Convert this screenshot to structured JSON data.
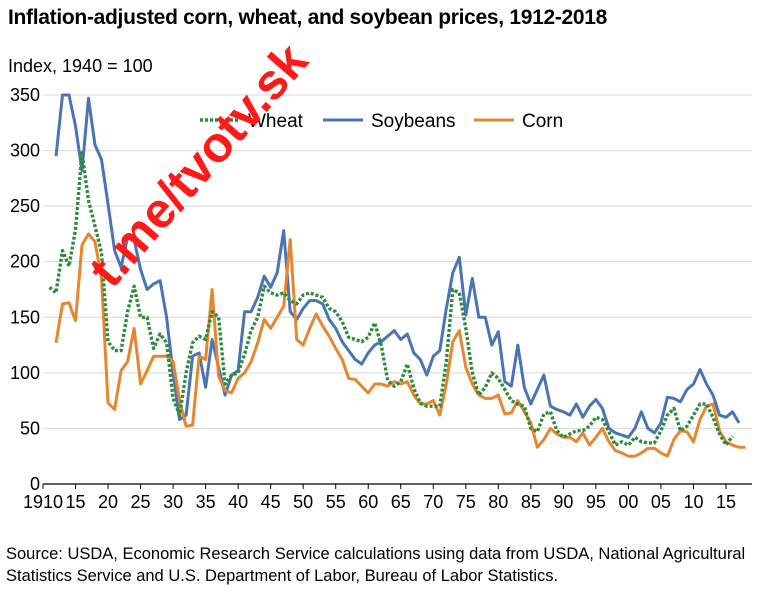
{
  "watermark": "t.me/tvotv.sk",
  "source_note": "Source: USDA, Economic Research Service calculations using data from USDA, National Agricultural Statistics Service and U.S. Department of Labor, Bureau of Labor Statistics.",
  "colors": {
    "wheat": "#2e8b3c",
    "soybeans": "#4a74b4",
    "corn": "#e8862f",
    "grid": "#d9d9d9",
    "watermark": "#ff1a1a"
  },
  "chart_data": {
    "type": "line",
    "title": "Inflation-adjusted corn, wheat, and soybean prices, 1912-2018",
    "ylabel": "Index, 1940 = 100",
    "xlabel": "",
    "xlim": [
      1910,
      2019
    ],
    "ylim": [
      0,
      350
    ],
    "grid": true,
    "legend_position": "top",
    "yticks": [
      0,
      50,
      100,
      150,
      200,
      250,
      300,
      350
    ],
    "xticks": [
      1910,
      1915,
      1920,
      1925,
      1930,
      1935,
      1940,
      1945,
      1950,
      1955,
      1960,
      1965,
      1970,
      1975,
      1980,
      1985,
      1990,
      1995,
      2000,
      2005,
      2010,
      2015
    ],
    "xtick_labels": [
      "1910",
      "15",
      "20",
      "25",
      "30",
      "35",
      "40",
      "45",
      "50",
      "55",
      "60",
      "65",
      "70",
      "75",
      "80",
      "85",
      "90",
      "95",
      "00",
      "05",
      "10",
      "15"
    ],
    "series": [
      {
        "name": "Wheat",
        "style": "dotted",
        "x": [
          1911,
          1912,
          1913,
          1914,
          1915,
          1916,
          1917,
          1918,
          1919,
          1920,
          1921,
          1922,
          1923,
          1924,
          1925,
          1926,
          1927,
          1928,
          1929,
          1930,
          1931,
          1932,
          1933,
          1934,
          1935,
          1936,
          1937,
          1938,
          1939,
          1940,
          1941,
          1942,
          1943,
          1944,
          1945,
          1946,
          1947,
          1948,
          1949,
          1950,
          1951,
          1952,
          1953,
          1954,
          1955,
          1956,
          1957,
          1958,
          1959,
          1960,
          1961,
          1962,
          1963,
          1964,
          1965,
          1966,
          1967,
          1968,
          1969,
          1970,
          1971,
          1972,
          1973,
          1974,
          1975,
          1976,
          1977,
          1978,
          1979,
          1980,
          1981,
          1982,
          1983,
          1984,
          1985,
          1986,
          1987,
          1988,
          1989,
          1990,
          1991,
          1992,
          1993,
          1994,
          1995,
          1996,
          1997,
          1998,
          1999,
          2000,
          2001,
          2002,
          2003,
          2004,
          2005,
          2006,
          2007,
          2008,
          2009,
          2010,
          2011,
          2012,
          2013,
          2014,
          2015,
          2016
        ],
        "values": [
          177,
          172,
          210,
          196,
          229,
          298,
          255,
          232,
          208,
          128,
          120,
          120,
          155,
          178,
          150,
          150,
          122,
          135,
          127,
          77,
          62,
          100,
          127,
          133,
          130,
          155,
          150,
          90,
          98,
          100,
          117,
          138,
          150,
          178,
          172,
          170,
          172,
          165,
          162,
          170,
          172,
          170,
          168,
          158,
          155,
          146,
          132,
          130,
          128,
          132,
          145,
          125,
          93,
          88,
          92,
          108,
          86,
          73,
          70,
          70,
          70,
          110,
          175,
          172,
          140,
          100,
          80,
          87,
          100,
          95,
          85,
          75,
          72,
          70,
          50,
          47,
          63,
          65,
          48,
          42,
          45,
          48,
          48,
          52,
          60,
          58,
          47,
          35,
          38,
          35,
          42,
          38,
          37,
          37,
          48,
          62,
          68,
          48,
          52,
          62,
          72,
          72,
          60,
          45,
          35,
          43
        ]
      },
      {
        "name": "Soybeans",
        "style": "solid",
        "x": [
          1912,
          1913,
          1914,
          1915,
          1916,
          1917,
          1918,
          1919,
          1920,
          1921,
          1922,
          1923,
          1924,
          1925,
          1926,
          1927,
          1928,
          1929,
          1930,
          1931,
          1932,
          1933,
          1934,
          1935,
          1936,
          1937,
          1938,
          1939,
          1940,
          1941,
          1942,
          1943,
          1944,
          1945,
          1946,
          1947,
          1948,
          1949,
          1950,
          1951,
          1952,
          1953,
          1954,
          1955,
          1956,
          1957,
          1958,
          1959,
          1960,
          1961,
          1962,
          1963,
          1964,
          1965,
          1966,
          1967,
          1968,
          1969,
          1970,
          1971,
          1972,
          1973,
          1974,
          1975,
          1976,
          1977,
          1978,
          1979,
          1980,
          1981,
          1982,
          1983,
          1984,
          1985,
          1986,
          1987,
          1988,
          1989,
          1990,
          1991,
          1992,
          1993,
          1994,
          1995,
          1996,
          1997,
          1998,
          1999,
          2000,
          2001,
          2002,
          2003,
          2004,
          2005,
          2006,
          2007,
          2008,
          2009,
          2010,
          2011,
          2012,
          2013,
          2014,
          2015,
          2016,
          2017
        ],
        "values": [
          295,
          350,
          350,
          322,
          282,
          347,
          305,
          292,
          252,
          210,
          195,
          222,
          220,
          193,
          175,
          180,
          183,
          150,
          100,
          58,
          62,
          115,
          118,
          87,
          130,
          105,
          80,
          98,
          102,
          155,
          155,
          168,
          187,
          177,
          190,
          228,
          155,
          148,
          158,
          165,
          165,
          162,
          148,
          140,
          128,
          120,
          112,
          108,
          118,
          125,
          128,
          133,
          138,
          130,
          135,
          118,
          112,
          98,
          115,
          120,
          158,
          190,
          204,
          152,
          185,
          150,
          150,
          125,
          137,
          92,
          88,
          125,
          87,
          72,
          85,
          98,
          70,
          67,
          65,
          62,
          72,
          60,
          70,
          76,
          68,
          50,
          46,
          44,
          42,
          50,
          65,
          50,
          46,
          55,
          78,
          77,
          74,
          85,
          90,
          103,
          90,
          80,
          62,
          60,
          65,
          55
        ]
      },
      {
        "name": "Corn",
        "style": "solid",
        "x": [
          1912,
          1913,
          1914,
          1915,
          1916,
          1917,
          1918,
          1919,
          1920,
          1921,
          1922,
          1923,
          1924,
          1925,
          1926,
          1927,
          1928,
          1929,
          1930,
          1931,
          1932,
          1933,
          1934,
          1935,
          1936,
          1937,
          1938,
          1939,
          1940,
          1941,
          1942,
          1943,
          1944,
          1945,
          1946,
          1947,
          1948,
          1949,
          1950,
          1951,
          1952,
          1953,
          1954,
          1955,
          1956,
          1957,
          1958,
          1959,
          1960,
          1961,
          1962,
          1963,
          1964,
          1965,
          1966,
          1967,
          1968,
          1969,
          1970,
          1971,
          1972,
          1973,
          1974,
          1975,
          1976,
          1977,
          1978,
          1979,
          1980,
          1981,
          1982,
          1983,
          1984,
          1985,
          1986,
          1987,
          1988,
          1989,
          1990,
          1991,
          1992,
          1993,
          1994,
          1995,
          1996,
          1997,
          1998,
          1999,
          2000,
          2001,
          2002,
          2003,
          2004,
          2005,
          2006,
          2007,
          2008,
          2009,
          2010,
          2011,
          2012,
          2013,
          2014,
          2015,
          2016,
          2017,
          2018
        ],
        "values": [
          127,
          162,
          163,
          147,
          215,
          225,
          218,
          185,
          73,
          67,
          102,
          110,
          140,
          90,
          102,
          115,
          115,
          115,
          110,
          75,
          52,
          53,
          115,
          112,
          175,
          97,
          84,
          82,
          95,
          100,
          110,
          127,
          148,
          140,
          150,
          160,
          220,
          130,
          125,
          140,
          153,
          142,
          133,
          122,
          112,
          95,
          94,
          88,
          82,
          90,
          90,
          88,
          92,
          90,
          92,
          80,
          72,
          72,
          75,
          62,
          90,
          128,
          138,
          105,
          90,
          80,
          77,
          77,
          80,
          63,
          64,
          75,
          65,
          55,
          33,
          40,
          50,
          45,
          42,
          42,
          38,
          46,
          35,
          42,
          50,
          38,
          30,
          28,
          25,
          25,
          28,
          32,
          32,
          28,
          25,
          40,
          48,
          47,
          38,
          58,
          70,
          72,
          48,
          38,
          35,
          33,
          33
        ]
      }
    ]
  }
}
